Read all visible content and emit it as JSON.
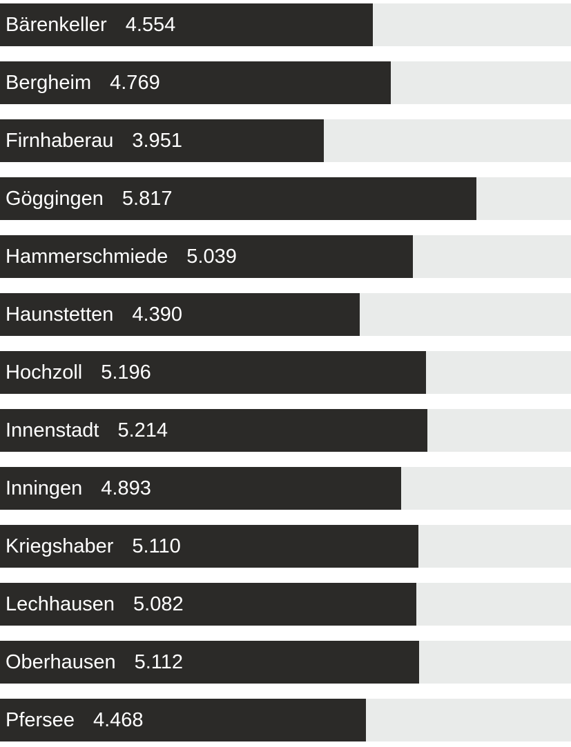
{
  "chart_data": {
    "type": "bar",
    "orientation": "horizontal",
    "title": "",
    "xlabel": "",
    "ylabel": "",
    "xlim": [
      0,
      6970
    ],
    "grid": false,
    "legend": false,
    "bar_color": "#2b2a28",
    "track_color": "#e9ebea",
    "text_color": "#ffffff",
    "categories": [
      "Bärenkeller",
      "Bergheim",
      "Firnhaberau",
      "Göggingen",
      "Hammerschmiede",
      "Haunstetten",
      "Hochzoll",
      "Innenstadt",
      "Inningen",
      "Kriegshaber",
      "Lechhausen",
      "Oberhausen",
      "Pfersee"
    ],
    "values": [
      4554,
      4769,
      3951,
      5817,
      5039,
      4390,
      5196,
      5214,
      4893,
      5110,
      5082,
      5112,
      4468
    ],
    "value_labels": [
      "4.554",
      "4.769",
      "3.951",
      "5.817",
      "5.039",
      "4.390",
      "5.196",
      "5.214",
      "4.893",
      "5.110",
      "5.082",
      "5.112",
      "4.468"
    ]
  }
}
